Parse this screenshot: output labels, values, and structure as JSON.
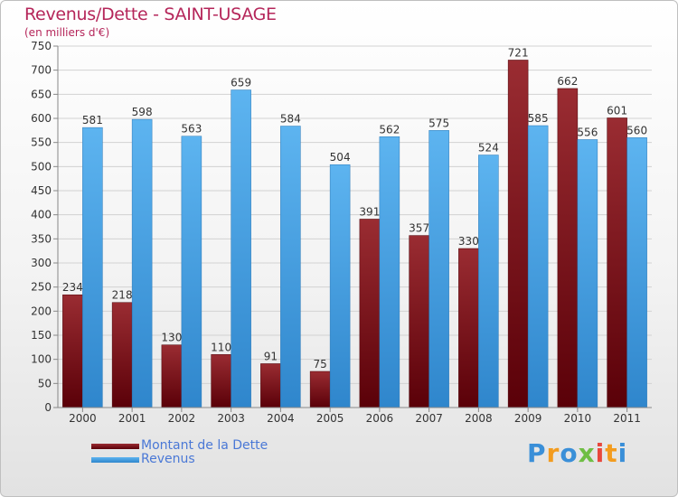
{
  "header": {
    "title": "Revenus/Dette - SAINT-USAGE",
    "subtitle": "(en milliers d'€)"
  },
  "colors": {
    "title": "#b5265a",
    "dette": "#7a0f16",
    "revenus": "#3d9ae2",
    "legend_text": "#4a78d6"
  },
  "chart_data": {
    "type": "bar",
    "categories": [
      "2000",
      "2001",
      "2002",
      "2003",
      "2004",
      "2005",
      "2006",
      "2007",
      "2008",
      "2009",
      "2010",
      "2011"
    ],
    "series": [
      {
        "name": "Montant de la Dette",
        "values": [
          234,
          218,
          130,
          110,
          91,
          75,
          391,
          357,
          330,
          721,
          662,
          601
        ]
      },
      {
        "name": "Revenus",
        "values": [
          581,
          598,
          563,
          659,
          584,
          504,
          562,
          575,
          524,
          585,
          556,
          560
        ]
      }
    ],
    "ylim": [
      0,
      750
    ],
    "yticks": [
      0,
      50,
      100,
      150,
      200,
      250,
      300,
      350,
      400,
      450,
      500,
      550,
      600,
      650,
      700,
      750
    ],
    "grid": true,
    "legend_position": "bottom-left"
  },
  "legend": {
    "items": [
      {
        "label": "Montant de la Dette"
      },
      {
        "label": "Revenus"
      }
    ]
  },
  "logo": {
    "text": "Proxiti"
  }
}
